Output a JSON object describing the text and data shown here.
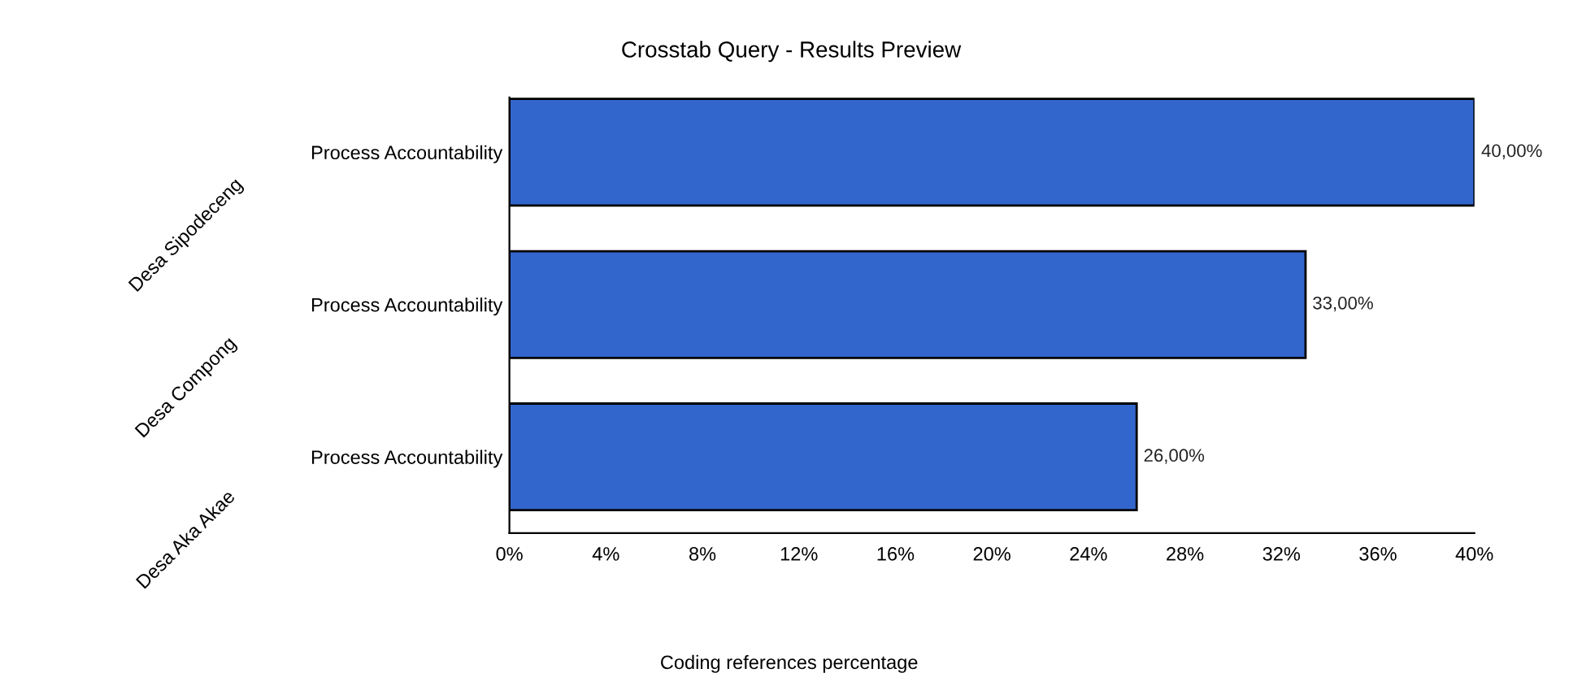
{
  "chart_data": {
    "type": "bar",
    "orientation": "horizontal",
    "title": "Crosstab Query - Results Preview",
    "xlabel": "Coding references percentage",
    "categories": [
      "Process Accountability",
      "Process Accountability",
      "Process Accountability"
    ],
    "annotations": [
      "Desa Sipodeceng",
      "Desa Compong",
      "Desa Aka Akae"
    ],
    "values": [
      40,
      33,
      26
    ],
    "color": "#3366cc",
    "value_labels": [
      "40,00%",
      "33,00%",
      "26,00%"
    ],
    "xlim": [
      0,
      40
    ],
    "xticks": [
      {
        "value": 0,
        "label": "0%"
      },
      {
        "value": 4,
        "label": "4%"
      },
      {
        "value": 8,
        "label": "8%"
      },
      {
        "value": 12,
        "label": "12%"
      },
      {
        "value": 16,
        "label": "16%"
      },
      {
        "value": 20,
        "label": "20%"
      },
      {
        "value": 24,
        "label": "24%"
      },
      {
        "value": 28,
        "label": "28%"
      },
      {
        "value": 32,
        "label": "32%"
      },
      {
        "value": 36,
        "label": "36%"
      },
      {
        "value": 40,
        "label": "40%"
      }
    ],
    "grid": false,
    "legend": false
  }
}
